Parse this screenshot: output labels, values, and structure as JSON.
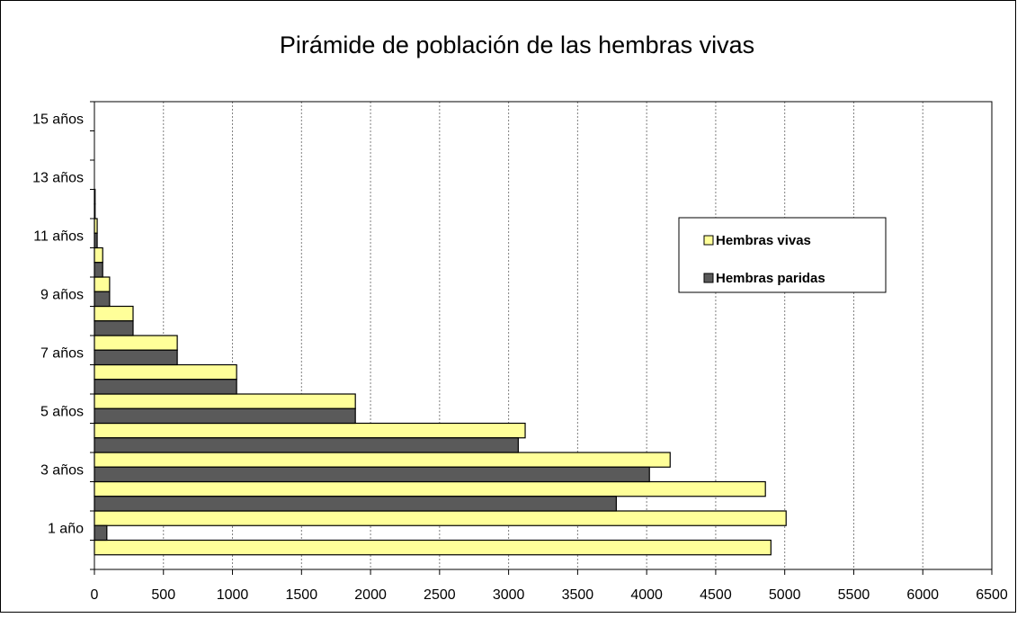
{
  "chart_data": {
    "type": "bar",
    "orientation": "horizontal",
    "title": "Pirámide de población de las hembras vivas",
    "categories": [
      null,
      "1 año",
      null,
      "3 años",
      null,
      "5  años",
      null,
      "7 años",
      null,
      "9 años",
      null,
      "11 años",
      null,
      "13 años",
      null,
      "15 años"
    ],
    "series": [
      {
        "name": "Hembras vivas",
        "color": "#ffff99",
        "values": [
          4900,
          5010,
          4860,
          4170,
          3120,
          1890,
          1030,
          600,
          280,
          110,
          60,
          20,
          5,
          0,
          0,
          0
        ]
      },
      {
        "name": "Hembras paridas",
        "color": "#5a5a5a",
        "values": [
          0,
          90,
          3780,
          4020,
          3070,
          1890,
          1030,
          600,
          280,
          110,
          60,
          20,
          5,
          0,
          0,
          0
        ]
      }
    ],
    "xlim": [
      0,
      6500
    ],
    "xticks": [
      0,
      500,
      1000,
      1500,
      2000,
      2500,
      3000,
      3500,
      4000,
      4500,
      5000,
      5500,
      6000,
      6500
    ],
    "grid": true,
    "legend": "right"
  }
}
